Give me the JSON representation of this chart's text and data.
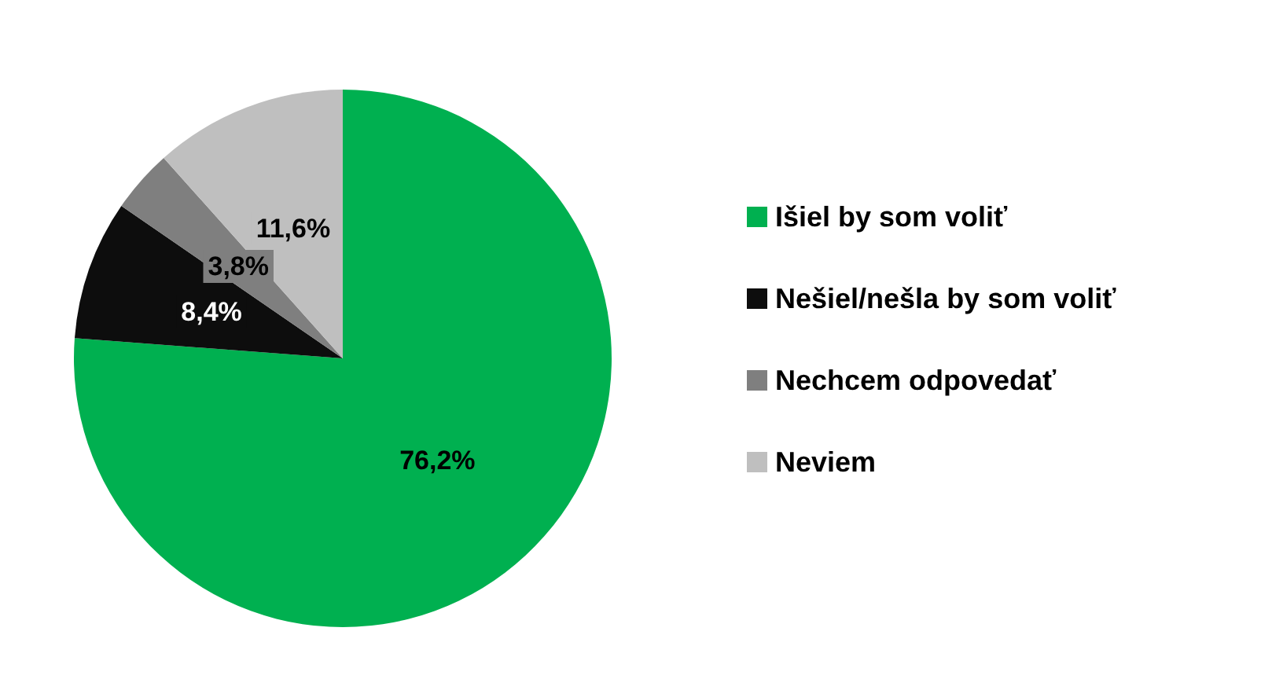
{
  "chart_data": {
    "type": "pie",
    "categories": [
      "Išiel by som voliť",
      "Nešiel/nešla by som voliť",
      "Nechcem odpovedať",
      "Neviem"
    ],
    "values": [
      76.2,
      8.4,
      3.8,
      11.6
    ],
    "colors": [
      "#00b050",
      "#0d0d0d",
      "#7f7f7f",
      "#bfbfbf"
    ],
    "value_labels": [
      "76,2%",
      "8,4%",
      "3,8%",
      "11,6%"
    ],
    "legend": "right"
  }
}
